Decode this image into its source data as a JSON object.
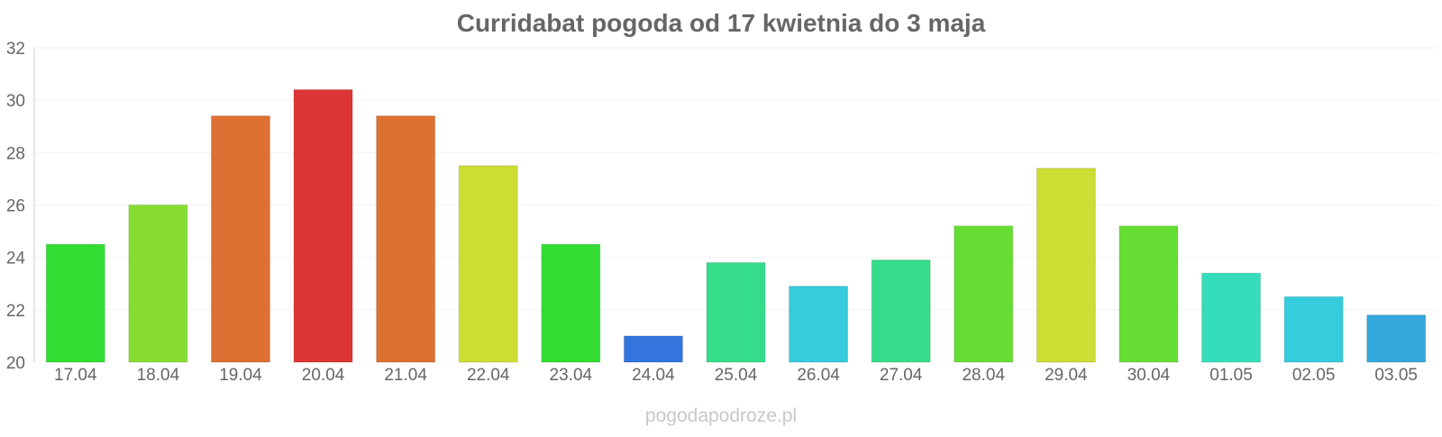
{
  "chart_data": {
    "type": "bar",
    "title": "Curridabat pogoda od 17 kwietnia do 3 maja",
    "xlabel": "",
    "ylabel": "",
    "ylim": [
      20,
      32
    ],
    "yticks": [
      20,
      22,
      24,
      26,
      28,
      30,
      32
    ],
    "grid": true,
    "categories": [
      "17.04",
      "18.04",
      "19.04",
      "20.04",
      "21.04",
      "22.04",
      "23.04",
      "24.04",
      "25.04",
      "26.04",
      "27.04",
      "28.04",
      "29.04",
      "30.04",
      "01.05",
      "02.05",
      "03.05"
    ],
    "values": [
      24.5,
      26.0,
      29.4,
      30.4,
      29.4,
      27.5,
      24.5,
      21.0,
      23.8,
      22.9,
      23.9,
      25.2,
      27.4,
      25.2,
      23.4,
      22.5,
      21.8
    ],
    "colors": [
      "#33dd33",
      "#88dd33",
      "#dd7033",
      "#dd3535",
      "#dd7033",
      "#ccdd33",
      "#33dd33",
      "#3375dd",
      "#35dd8a",
      "#35ccdd",
      "#35dd8a",
      "#66dd33",
      "#ccdd33",
      "#66dd33",
      "#35ddbb",
      "#35ccdd",
      "#35a8dd"
    ]
  },
  "watermark": "pogodapodroze.pl"
}
